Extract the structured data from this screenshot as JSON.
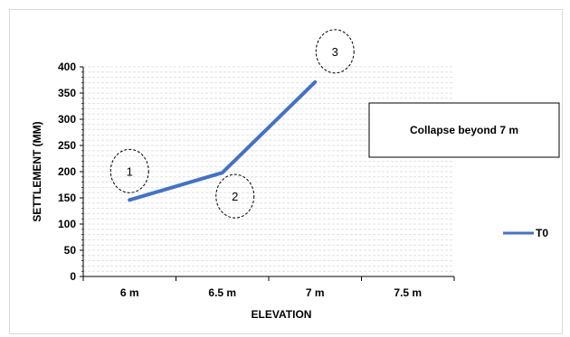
{
  "chart_data": {
    "type": "line",
    "categories": [
      "6 m",
      "6.5 m",
      "7 m",
      "7.5 m"
    ],
    "series": [
      {
        "name": "T0",
        "values": [
          146,
          198,
          371,
          null
        ],
        "color": "#4472C4"
      }
    ],
    "xlabel": "ELEVATION",
    "ylabel": "SETTLEMENT (MM)",
    "ylim": [
      0,
      400
    ],
    "yticks": [
      0,
      50,
      100,
      150,
      200,
      250,
      300,
      350,
      400
    ],
    "grid": true,
    "legend_position": "right",
    "annotations": {
      "callout": "Collapse beyond 7 m",
      "markers": [
        "1",
        "2",
        "3"
      ]
    }
  }
}
